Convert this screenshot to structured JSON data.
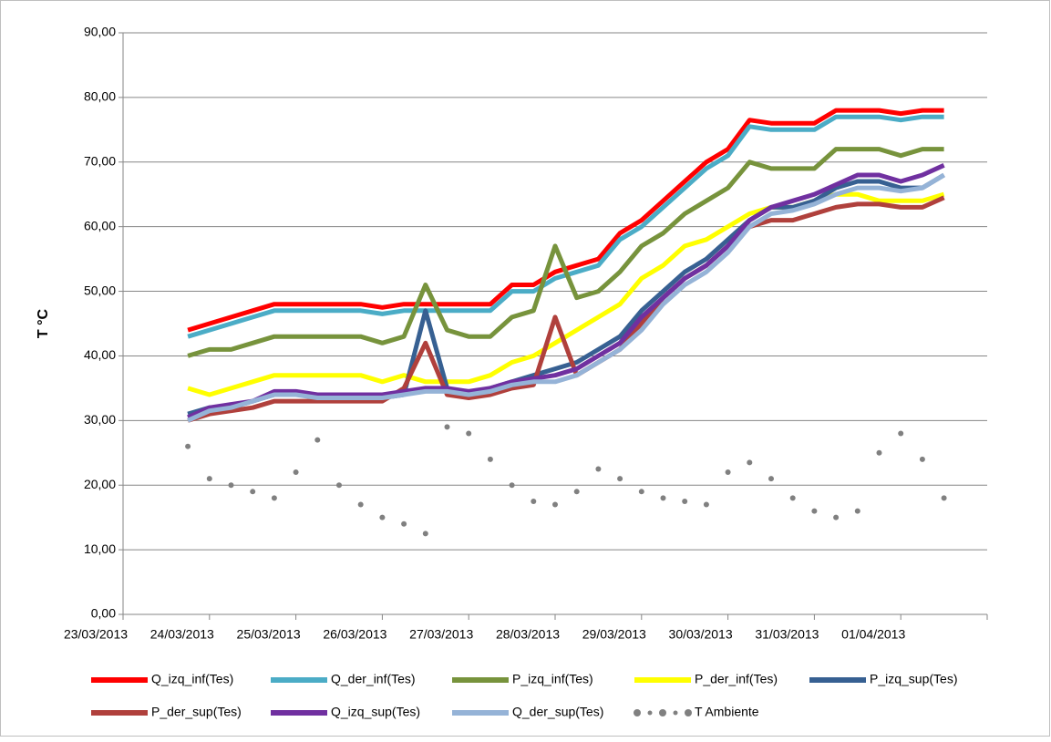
{
  "chart_data": {
    "type": "line",
    "y_label": "T °C",
    "xlim": [
      0,
      10
    ],
    "xticks": [
      {
        "value": 0,
        "label": "23/03/2013"
      },
      {
        "value": 1,
        "label": "24/03/2013"
      },
      {
        "value": 2,
        "label": "25/03/2013"
      },
      {
        "value": 3,
        "label": "26/03/2013"
      },
      {
        "value": 4,
        "label": "27/03/2013"
      },
      {
        "value": 5,
        "label": "28/03/2013"
      },
      {
        "value": 6,
        "label": "29/03/2013"
      },
      {
        "value": 7,
        "label": "30/03/2013"
      },
      {
        "value": 8,
        "label": "31/03/2013"
      },
      {
        "value": 9,
        "label": "01/04/2013"
      }
    ],
    "ylim": [
      0,
      90
    ],
    "yticks": [
      {
        "value": 0,
        "label": "0,00"
      },
      {
        "value": 10,
        "label": "10,00"
      },
      {
        "value": 20,
        "label": "20,00"
      },
      {
        "value": 30,
        "label": "30,00"
      },
      {
        "value": 40,
        "label": "40,00"
      },
      {
        "value": 50,
        "label": "50,00"
      },
      {
        "value": 60,
        "label": "60,00"
      },
      {
        "value": 70,
        "label": "70,00"
      },
      {
        "value": 80,
        "label": "80,00"
      },
      {
        "value": 90,
        "label": "90,00"
      }
    ],
    "grid": true,
    "legend": "bottom",
    "x": [
      0.75,
      1,
      1.25,
      1.5,
      1.75,
      2,
      2.25,
      2.5,
      2.75,
      3,
      3.25,
      3.5,
      3.75,
      4,
      4.25,
      4.5,
      4.75,
      5,
      5.25,
      5.5,
      5.75,
      6,
      6.25,
      6.5,
      6.75,
      7,
      7.25,
      7.5,
      7.75,
      8,
      8.25,
      8.5,
      8.75,
      9,
      9.25,
      9.5
    ],
    "series": [
      {
        "name": "Q_izq_inf(Tes)",
        "color": "#ff0000",
        "style": "line",
        "values": [
          44,
          45,
          46,
          47,
          48,
          48,
          48,
          48,
          48,
          47.5,
          48,
          48,
          48,
          48,
          48,
          51,
          51,
          53,
          54,
          55,
          59,
          61,
          64,
          67,
          70,
          72,
          76.5,
          76,
          76,
          76,
          78,
          78,
          78,
          77.5,
          78,
          78
        ]
      },
      {
        "name": "Q_der_inf(Tes)",
        "color": "#4bacc6",
        "style": "line",
        "values": [
          43,
          44,
          45,
          46,
          47,
          47,
          47,
          47,
          47,
          46.5,
          47,
          47,
          47,
          47,
          47,
          50,
          50,
          52,
          53,
          54,
          58,
          60,
          63,
          66,
          69,
          71,
          75.5,
          75,
          75,
          75,
          77,
          77,
          77,
          76.5,
          77,
          77
        ]
      },
      {
        "name": "P_izq_inf(Tes)",
        "color": "#77933c",
        "style": "line",
        "values": [
          40,
          41,
          41,
          42,
          43,
          43,
          43,
          43,
          43,
          42,
          43,
          51,
          44,
          43,
          43,
          46,
          47,
          57,
          49,
          50,
          53,
          57,
          59,
          62,
          64,
          66,
          70,
          69,
          69,
          69,
          72,
          72,
          72,
          71,
          72,
          72
        ]
      },
      {
        "name": "P_der_inf(Tes)",
        "color": "#ffff00",
        "style": "line",
        "values": [
          35,
          34,
          35,
          36,
          37,
          37,
          37,
          37,
          37,
          36,
          37,
          36,
          36,
          36,
          37,
          39,
          40,
          42,
          44,
          46,
          48,
          52,
          54,
          57,
          58,
          60,
          62,
          63,
          63,
          64,
          65,
          65,
          64,
          64,
          64,
          65
        ]
      },
      {
        "name": "P_izq_sup(Tes)",
        "color": "#376092",
        "style": "line",
        "values": [
          31,
          32,
          32,
          33,
          34,
          34,
          34,
          34,
          34,
          33.5,
          34,
          47,
          35,
          34,
          35,
          36,
          37,
          38,
          39,
          41,
          43,
          47,
          50,
          53,
          55,
          58,
          61,
          63,
          63,
          64,
          66,
          67,
          67,
          66,
          66,
          68
        ]
      },
      {
        "name": "P_der_sup(Tes)",
        "color": "#b0403c",
        "style": "line",
        "values": [
          30,
          31,
          31.5,
          32,
          33,
          33,
          33,
          33,
          33,
          33,
          35,
          42,
          34,
          33.5,
          34,
          35,
          35.5,
          46,
          37,
          39,
          41,
          45,
          49,
          52,
          54,
          57,
          60,
          61,
          61,
          62,
          63,
          63.5,
          63.5,
          63,
          63,
          64.5
        ]
      },
      {
        "name": "Q_izq_sup(Tes)",
        "color": "#7030a0",
        "style": "line",
        "values": [
          30.5,
          32,
          32.5,
          33,
          34.5,
          34.5,
          34,
          34,
          34,
          34,
          34.5,
          35,
          35,
          34.5,
          35,
          36,
          36.5,
          37,
          38,
          40,
          42,
          46,
          49,
          52,
          54,
          57,
          61,
          63,
          64,
          65,
          66.5,
          68,
          68,
          67,
          68,
          69.5
        ]
      },
      {
        "name": "Q_der_sup(Tes)",
        "color": "#95b3d7",
        "style": "line",
        "values": [
          30,
          31.5,
          32,
          33,
          34,
          34,
          33.5,
          33.5,
          33.5,
          33.5,
          34,
          34.5,
          34.5,
          34,
          34.5,
          35.5,
          36,
          36,
          37,
          39,
          41,
          44,
          48,
          51,
          53,
          56,
          60,
          62,
          62.5,
          63.5,
          65,
          66,
          66,
          65.5,
          66,
          68
        ]
      },
      {
        "name": "T Ambiente",
        "color": "#808080",
        "style": "dots",
        "values": [
          26,
          21,
          20,
          19,
          18,
          22,
          27,
          20,
          17,
          15,
          14,
          12.5,
          29,
          28,
          24,
          20,
          17.5,
          17,
          19,
          22.5,
          21,
          19,
          18,
          17.5,
          17,
          22,
          23.5,
          21,
          18,
          16,
          15,
          16,
          25,
          28,
          24,
          18
        ]
      }
    ]
  }
}
